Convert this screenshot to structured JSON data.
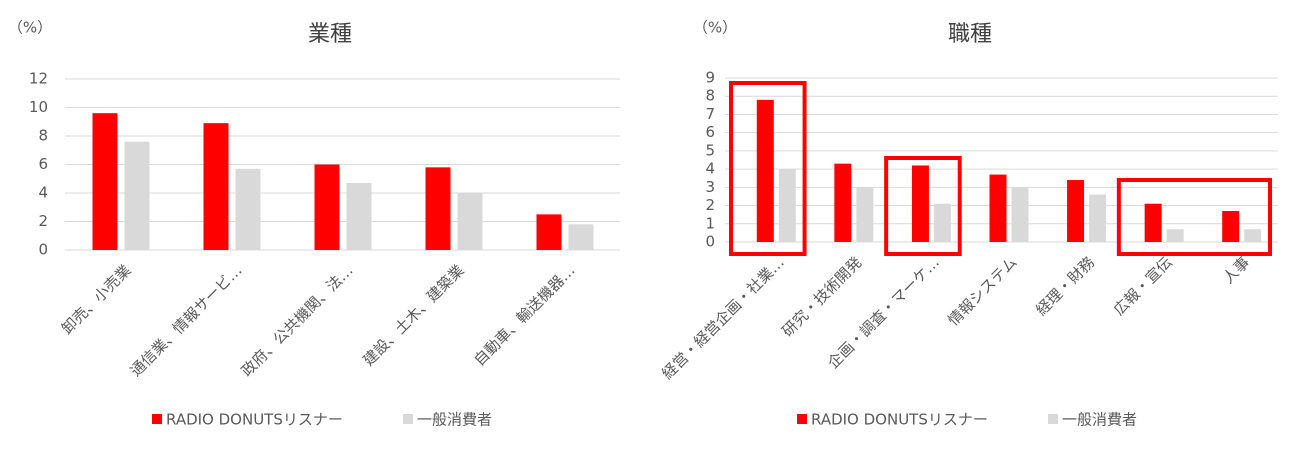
{
  "chart_data": [
    {
      "type": "bar",
      "title": "業種",
      "unit": "（%）",
      "categories": [
        "卸売、小売業",
        "通信業、情報サービ…",
        "政府、公共機関、法…",
        "建設、土木、建築業",
        "自動車、輸送機器…"
      ],
      "series": [
        {
          "name": "RADIO DONUTSリスナー",
          "color": "#ff0000",
          "values": [
            9.6,
            8.9,
            6.0,
            5.8,
            2.5
          ]
        },
        {
          "name": "一般消費者",
          "color": "#d9d9d9",
          "values": [
            7.6,
            5.7,
            4.7,
            4.0,
            1.8
          ]
        }
      ],
      "ylim": [
        0,
        12
      ],
      "yticks": [
        0,
        2,
        4,
        6,
        8,
        10,
        12
      ],
      "grid": true
    },
    {
      "type": "bar",
      "title": "職種",
      "unit": "（%）",
      "categories": [
        "経営・経営企画・社業…",
        "研究・技術開発",
        "企画・調査・マーケ…",
        "情報システム",
        "経理・財務",
        "広報・宣伝",
        "人事"
      ],
      "series": [
        {
          "name": "RADIO DONUTSリスナー",
          "color": "#ff0000",
          "values": [
            7.8,
            4.3,
            4.2,
            3.7,
            3.4,
            2.1,
            1.7
          ]
        },
        {
          "name": "一般消費者",
          "color": "#d9d9d9",
          "values": [
            4.0,
            3.0,
            2.1,
            3.0,
            2.6,
            0.7,
            0.7
          ]
        }
      ],
      "ylim": [
        0,
        9
      ],
      "yticks": [
        0,
        1,
        2,
        3,
        4,
        5,
        6,
        7,
        8,
        9
      ],
      "grid": true
    }
  ]
}
